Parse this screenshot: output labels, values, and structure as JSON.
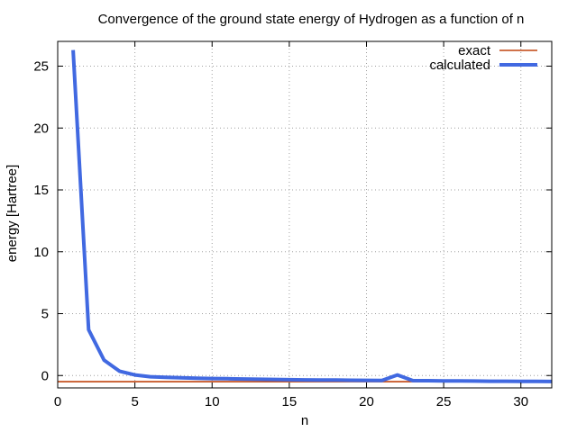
{
  "chart_data": {
    "type": "line",
    "title": "Convergence of the ground state energy of Hydrogen as a function of n",
    "xlabel": "n",
    "ylabel": "energy [Hartree]",
    "xlim": [
      0,
      32
    ],
    "ylim": [
      -1,
      27
    ],
    "xticks": [
      0,
      5,
      10,
      15,
      20,
      25,
      30
    ],
    "yticks": [
      0,
      5,
      10,
      15,
      20,
      25
    ],
    "grid": true,
    "legend_position": "top-right",
    "series": [
      {
        "name": "exact",
        "color": "#c0440f",
        "style": "thin",
        "x": [
          0,
          32
        ],
        "y": [
          -0.5,
          -0.5
        ]
      },
      {
        "name": "calculated",
        "color": "#4169e1",
        "style": "thick",
        "x": [
          1,
          2,
          3,
          4,
          5,
          6,
          7,
          8,
          9,
          10,
          11,
          12,
          13,
          14,
          15,
          16,
          17,
          18,
          19,
          20,
          21,
          22,
          23,
          24,
          25,
          26,
          27,
          28,
          29,
          30,
          31,
          32
        ],
        "y": [
          26.3,
          3.7,
          1.25,
          0.35,
          0.05,
          -0.1,
          -0.15,
          -0.18,
          -0.22,
          -0.24,
          -0.26,
          -0.28,
          -0.3,
          -0.32,
          -0.34,
          -0.35,
          -0.36,
          -0.37,
          -0.38,
          -0.39,
          -0.4,
          0.05,
          -0.41,
          -0.42,
          -0.43,
          -0.44,
          -0.45,
          -0.46,
          -0.46,
          -0.47,
          -0.47,
          -0.48
        ]
      }
    ]
  }
}
